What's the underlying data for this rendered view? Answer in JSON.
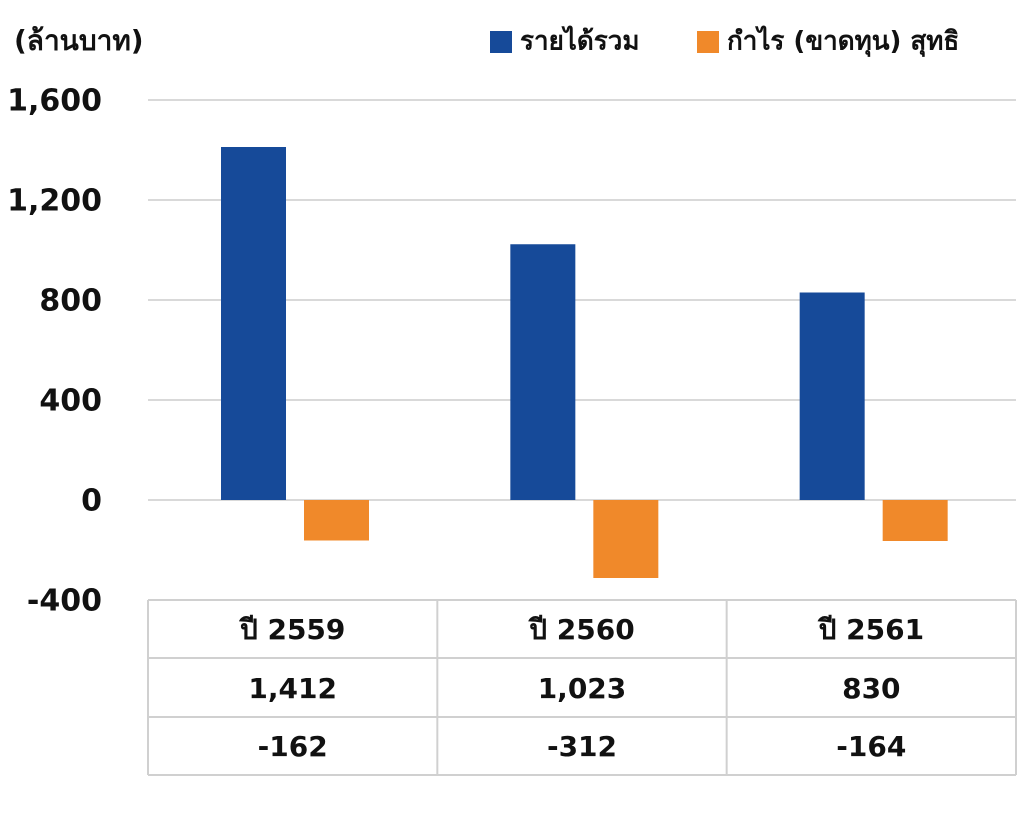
{
  "chart_data": {
    "type": "bar",
    "y_axis_label": "(ล้านบาท)",
    "categories": [
      "ปี 2559",
      "ปี 2560",
      "ปี 2561"
    ],
    "series": [
      {
        "name": "รายได้รวม",
        "color": "#164a99",
        "values": [
          1412,
          1023,
          830
        ],
        "value_labels": [
          "1,412",
          "1,023",
          "830"
        ]
      },
      {
        "name": "กำไร (ขาดทุน) สุทธิ",
        "color": "#f0892a",
        "values": [
          -162,
          -312,
          -164
        ],
        "value_labels": [
          "-162",
          "-312",
          "-164"
        ]
      }
    ],
    "ylim": [
      -400,
      1600
    ],
    "yticks": [
      {
        "value": -400,
        "label": "-400"
      },
      0,
      400,
      800,
      {
        "value": 1200,
        "label": "1,200"
      },
      {
        "value": 1600,
        "label": "1,600"
      }
    ],
    "grid": true,
    "legend": "top-right",
    "data_table": true
  }
}
